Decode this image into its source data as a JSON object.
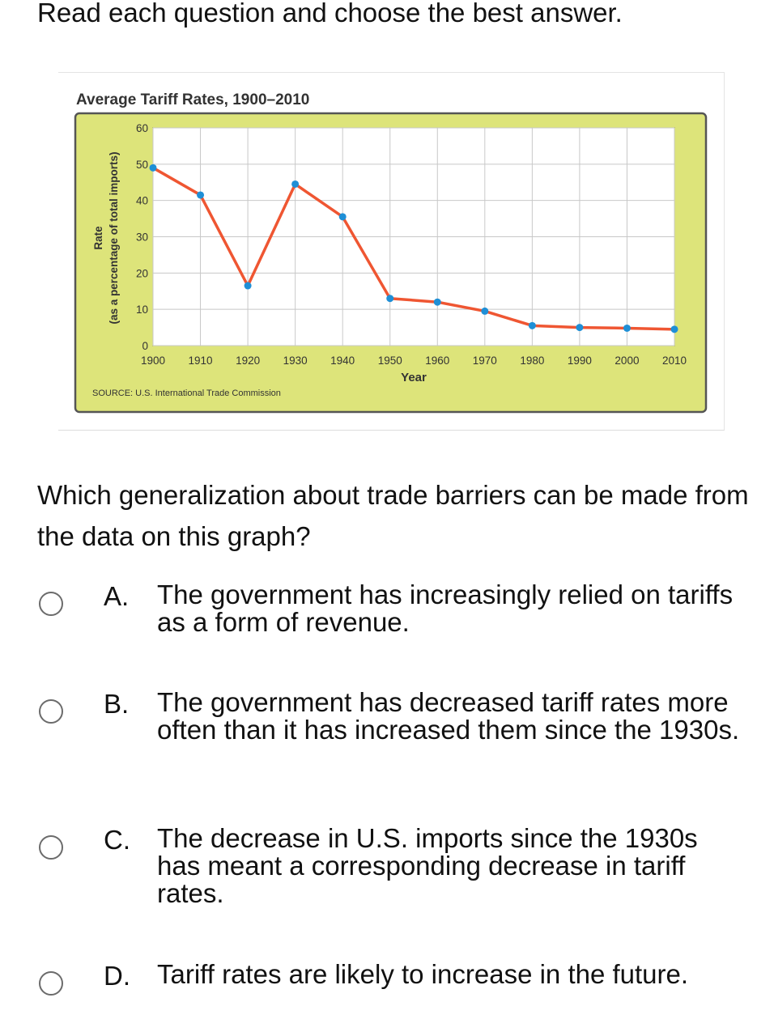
{
  "instruction": "Read each question and choose the best answer.",
  "question": "Which generalization about trade barriers can be made from the data on this graph?",
  "options": [
    {
      "letter": "A.",
      "text": "The government has increasingly relied on tariffs as a form of revenue."
    },
    {
      "letter": "B.",
      "text": "The government has decreased tariff rates more often than it has increased them since the 1930s."
    },
    {
      "letter": "C.",
      "text": "The decrease in U.S. imports since the 1930s has meant a corresponding decrease in tariff rates."
    },
    {
      "letter": "D.",
      "text": "Tariff rates are likely to increase in the future."
    }
  ],
  "chart_data": {
    "type": "line",
    "title": "Average Tariff Rates, 1900–2010",
    "xlabel": "Year",
    "ylabel": "Rate",
    "ylabel_sub": "(as a percentage of total imports)",
    "source": "SOURCE: U.S. International Trade Commission",
    "xlim": [
      1900,
      2010
    ],
    "ylim": [
      0,
      60
    ],
    "xticks": [
      "1900",
      "1910",
      "1920",
      "1930",
      "1940",
      "1950",
      "1960",
      "1970",
      "1980",
      "1990",
      "2000",
      "2010"
    ],
    "yticks": [
      "0",
      "10",
      "20",
      "30",
      "40",
      "50",
      "60"
    ],
    "grid": true,
    "x": [
      1900,
      1910,
      1920,
      1930,
      1940,
      1950,
      1960,
      1970,
      1980,
      1990,
      2000,
      2010
    ],
    "y": [
      49,
      41.5,
      16.5,
      44.5,
      35.5,
      13,
      12,
      9.5,
      5.5,
      5,
      4.8,
      4.5
    ],
    "colors": {
      "panel": "#dde47a",
      "plot": "#ffffff",
      "grid": "#c8c8c8",
      "line": "#ef5632",
      "point": "#1f8fd6",
      "border": "#555555"
    }
  }
}
